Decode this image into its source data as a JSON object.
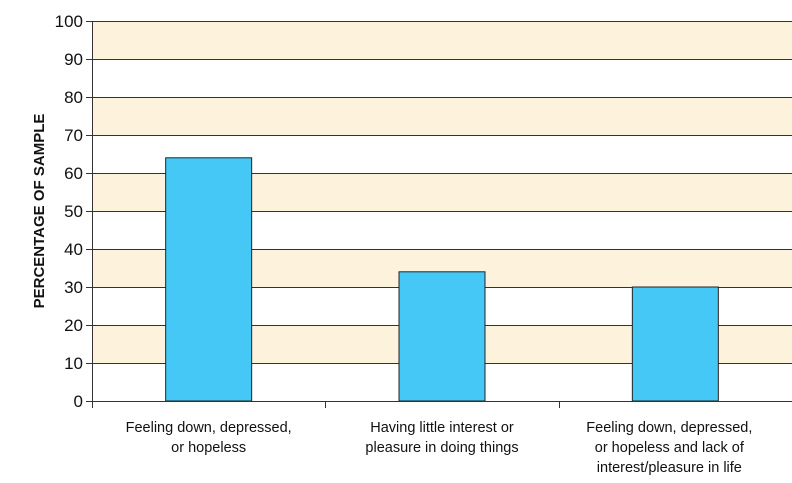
{
  "chart_data": {
    "type": "bar",
    "title": "",
    "xlabel": "",
    "ylabel": "PERCENTAGE OF SAMPLE",
    "ylim": [
      0,
      100
    ],
    "yticks": [
      0,
      10,
      20,
      30,
      40,
      50,
      60,
      70,
      80,
      90,
      100
    ],
    "grid": true,
    "categories": [
      [
        "Feeling down, depressed,",
        "or hopeless"
      ],
      [
        "Having little interest or",
        "pleasure in doing things"
      ],
      [
        "Feeling down, depressed,",
        "or hopeless and lack of",
        "interest/pleasure in life"
      ]
    ],
    "values": [
      64,
      34,
      30
    ],
    "colors": {
      "bar": "#45c8f5",
      "bar_edge": "#222222",
      "band": "#fdf3dc",
      "grid": "#333333",
      "axis": "#333333"
    }
  }
}
